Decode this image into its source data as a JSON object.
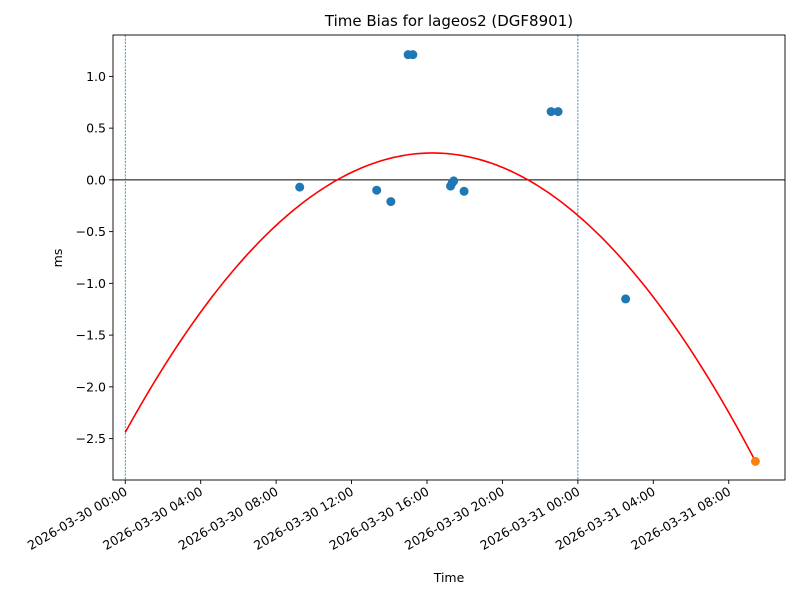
{
  "chart_data": {
    "type": "scatter",
    "title": "Time Bias for lageos2 (DGF8901)",
    "xlabel": "Time",
    "ylabel": "ms",
    "x_axis_type": "datetime",
    "xlim": [
      "2026-03-29 23:21",
      "2026-03-31 10:59"
    ],
    "ylim": [
      -2.9,
      1.4
    ],
    "grid": false,
    "x_ticks": [
      "2026-03-30 00:00",
      "2026-03-30 04:00",
      "2026-03-30 08:00",
      "2026-03-30 12:00",
      "2026-03-30 16:00",
      "2026-03-30 20:00",
      "2026-03-31 00:00",
      "2026-03-31 04:00",
      "2026-03-31 08:00"
    ],
    "y_ticks": [
      "−2.5",
      "−2.0",
      "−1.5",
      "−1.0",
      "−0.5",
      "0.0",
      "0.5",
      "1.0"
    ],
    "y_tick_values": [
      -2.5,
      -2.0,
      -1.5,
      -1.0,
      -0.5,
      0.0,
      0.5,
      1.0
    ],
    "series": [
      {
        "type": "scatter",
        "color": "#1f77b4",
        "points": [
          {
            "x": "2026-03-30 09:15",
            "y": -0.07
          },
          {
            "x": "2026-03-30 13:20",
            "y": -0.1
          },
          {
            "x": "2026-03-30 14:05",
            "y": -0.21
          },
          {
            "x": "2026-03-30 15:00",
            "y": 1.21
          },
          {
            "x": "2026-03-30 15:15",
            "y": 1.21
          },
          {
            "x": "2026-03-30 17:15",
            "y": -0.06
          },
          {
            "x": "2026-03-30 17:20",
            "y": -0.03
          },
          {
            "x": "2026-03-30 17:25",
            "y": -0.01
          },
          {
            "x": "2026-03-30 17:58",
            "y": -0.11
          },
          {
            "x": "2026-03-30 22:35",
            "y": 0.66
          },
          {
            "x": "2026-03-30 22:57",
            "y": 0.66
          },
          {
            "x": "2026-03-31 02:32",
            "y": -1.15
          }
        ]
      },
      {
        "type": "scatter",
        "color": "#ff7f0e",
        "points": [
          {
            "x": "2026-03-31 09:25",
            "y": -2.72
          }
        ]
      },
      {
        "type": "line",
        "color": "#ff0000",
        "fit": "quadratic",
        "points": [
          {
            "x": "2026-03-30 00:00",
            "y": -2.44
          },
          {
            "x": "2026-03-30 16:20",
            "y": 0.26
          },
          {
            "x": "2026-03-31 09:25",
            "y": -2.72
          }
        ]
      }
    ],
    "reference_lines": [
      {
        "orientation": "horizontal",
        "y": 0.0,
        "color": "#000000",
        "style": "solid"
      },
      {
        "orientation": "vertical",
        "x": "2026-03-30 00:00",
        "color": "#1f77b4",
        "style": "dashed"
      },
      {
        "orientation": "vertical",
        "x": "2026-03-31 00:00",
        "color": "#1f77b4",
        "style": "dashed"
      }
    ]
  }
}
